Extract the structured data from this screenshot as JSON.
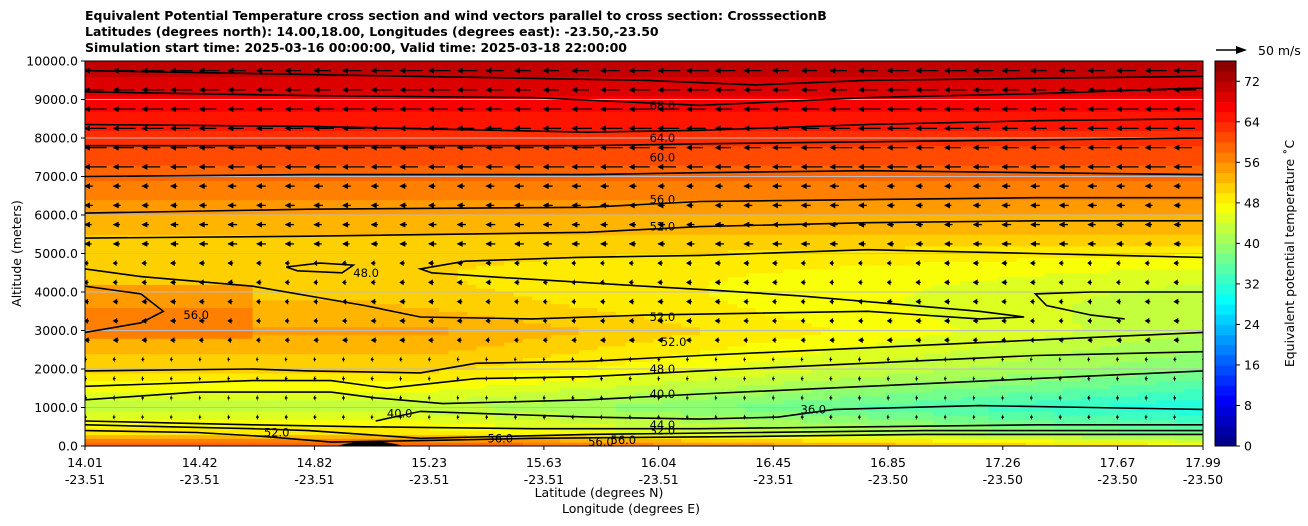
{
  "chart_data": {
    "type": "contourf",
    "title_lines": [
      "Equivalent Potential Temperature cross section and wind vectors parallel to cross section: CrosssectionB",
      "Latitudes (degrees north): 14.00,18.00, Longitudes (degrees east): -23.50,-23.50",
      "Simulation start time: 2025-03-16 00:00:00, Valid time: 2025-03-18 22:00:00"
    ],
    "ylabel": "Altitude (meters)",
    "xlabel": "Latitude (degrees N)",
    "xlabel2": "Longitude (degrees E)",
    "ylim": [
      0,
      10000
    ],
    "yticks": [
      "0.0",
      "1000.0",
      "2000.0",
      "3000.0",
      "4000.0",
      "5000.0",
      "6000.0",
      "7000.0",
      "8000.0",
      "9000.0",
      "10000.0"
    ],
    "xticks": [
      {
        "lat": "14.01",
        "lon": "-23.51"
      },
      {
        "lat": "14.42",
        "lon": "-23.51"
      },
      {
        "lat": "14.82",
        "lon": "-23.51"
      },
      {
        "lat": "15.23",
        "lon": "-23.51"
      },
      {
        "lat": "15.63",
        "lon": "-23.51"
      },
      {
        "lat": "16.04",
        "lon": "-23.51"
      },
      {
        "lat": "16.45",
        "lon": "-23.51"
      },
      {
        "lat": "16.85",
        "lon": "-23.50"
      },
      {
        "lat": "17.26",
        "lon": "-23.50"
      },
      {
        "lat": "17.67",
        "lon": "-23.50"
      },
      {
        "lat": "17.99",
        "lon": "-23.50"
      }
    ],
    "grid": true,
    "colorbar": {
      "label": "Equivalent potential temperature $^\\circ$C",
      "label_text": "Equivalent potential temperature ˚C",
      "ticks": [
        "0",
        "8",
        "16",
        "24",
        "32",
        "40",
        "48",
        "56",
        "64",
        "72"
      ],
      "range": [
        0,
        76
      ],
      "colormap": "jet"
    },
    "quiver_key": "50 m/s",
    "contour_labels": [
      {
        "text": "68.0",
        "x": 0.505,
        "alt": 8850
      },
      {
        "text": "64.0",
        "x": 0.505,
        "alt": 8000
      },
      {
        "text": "60.0",
        "x": 0.505,
        "alt": 7500
      },
      {
        "text": "56.0",
        "x": 0.505,
        "alt": 6400
      },
      {
        "text": "52.0",
        "x": 0.505,
        "alt": 5700
      },
      {
        "text": "48.0",
        "x": 0.24,
        "alt": 4500
      },
      {
        "text": "56.0",
        "x": 0.088,
        "alt": 3400
      },
      {
        "text": "52.0",
        "x": 0.505,
        "alt": 3350
      },
      {
        "text": "52.0",
        "x": 0.515,
        "alt": 2700
      },
      {
        "text": "48.0",
        "x": 0.505,
        "alt": 2000
      },
      {
        "text": "40.0",
        "x": 0.505,
        "alt": 1350
      },
      {
        "text": "40.0",
        "x": 0.27,
        "alt": 850
      },
      {
        "text": "36.0",
        "x": 0.64,
        "alt": 950
      },
      {
        "text": "52.0",
        "x": 0.16,
        "alt": 350
      },
      {
        "text": "56.0",
        "x": 0.36,
        "alt": 200
      },
      {
        "text": "56.0",
        "x": 0.45,
        "alt": 100
      },
      {
        "text": "56.0",
        "x": 0.47,
        "alt": 150
      },
      {
        "text": "44.0",
        "x": 0.505,
        "alt": 550
      },
      {
        "text": "32.0",
        "x": 0.505,
        "alt": 400
      }
    ]
  }
}
